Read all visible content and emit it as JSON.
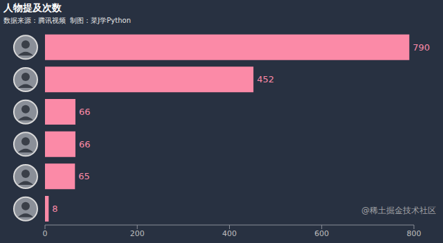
{
  "chart_data": {
    "type": "bar",
    "title": "人物提及次数",
    "subtitle": "数据来源：腾讯视频  制图：菜J学Python",
    "annotations": [
      "@稀土掘金技术社区"
    ],
    "orientation": "horizontal",
    "categories": [
      null,
      null,
      null,
      null,
      null,
      null
    ],
    "values": [
      790,
      452,
      66,
      66,
      65,
      8
    ],
    "color": "#fb8aa7",
    "xlim": [
      0,
      800
    ],
    "xticks": [
      0,
      200,
      400,
      600,
      800
    ],
    "grid": false,
    "data_labels": true
  }
}
